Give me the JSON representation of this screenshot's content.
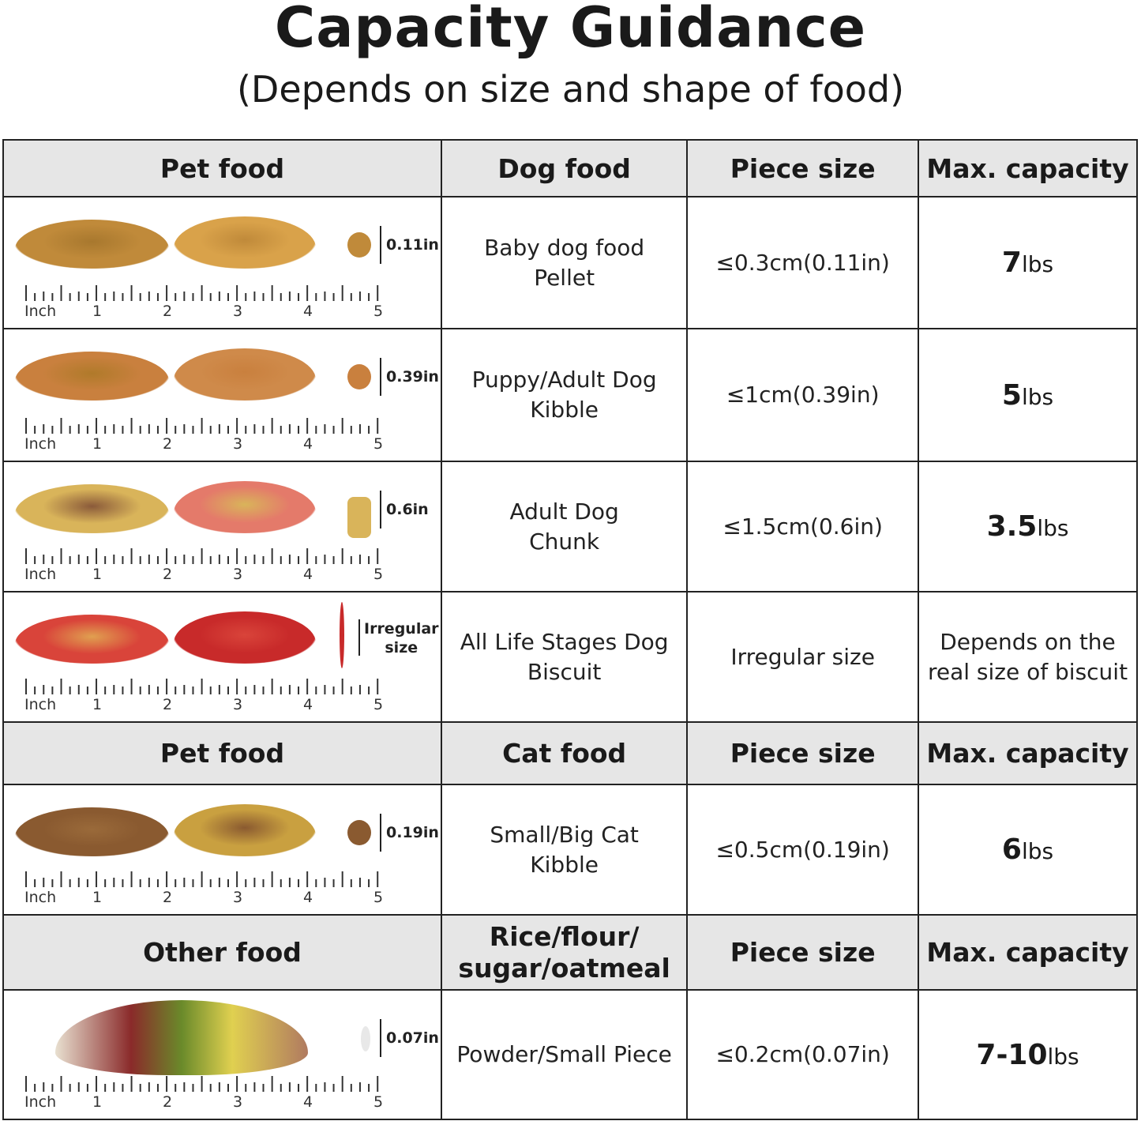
{
  "title": "Capacity Guidance",
  "subtitle": "(Depends on size and shape of food)",
  "ruler": {
    "unit": "Inch",
    "labels": [
      "1",
      "2",
      "3",
      "4",
      "5"
    ]
  },
  "sections": [
    {
      "headers": [
        "Pet food",
        "Dog food",
        "Piece size",
        "Max. capacity"
      ],
      "rows": [
        {
          "size_label": "0.11in",
          "food": "Baby dog food\nPellet",
          "piece": "≤0.3cm(0.11in)",
          "cap_num": "7",
          "cap_unit": "lbs",
          "colors": [
            "#a8782e",
            "#c08a3a",
            "#d9a24a"
          ],
          "height": "h0"
        },
        {
          "size_label": "0.39in",
          "food": "Puppy/Adult Dog\nKibble",
          "piece": "≤1cm(0.39in)",
          "cap_num": "5",
          "cap_unit": "lbs",
          "colors": [
            "#b07a2a",
            "#c9803e",
            "#cf8a4a"
          ]
        },
        {
          "size_label": "0.6in",
          "food": "Adult Dog\nChunk",
          "piece": "≤1.5cm(0.6in)",
          "cap_num": "3.5",
          "cap_unit": "lbs",
          "colors": [
            "#8a5a3a",
            "#d9b45a",
            "#e47a6a"
          ]
        },
        {
          "size_label": "Irregular\nsize",
          "food": "All Life Stages Dog\nBiscuit",
          "piece": "Irregular size",
          "cap_text": "Depends on the\nreal size of biscuit",
          "colors": [
            "#e0a050",
            "#d9443a",
            "#c82a2a"
          ]
        }
      ]
    },
    {
      "headers": [
        "Pet food",
        "Cat food",
        "Piece size",
        "Max. capacity"
      ],
      "rows": [
        {
          "size_label": "0.19in",
          "food": "Small/Big Cat\nKibble",
          "piece": "≤0.5cm(0.19in)",
          "cap_num": "6",
          "cap_unit": "lbs",
          "colors": [
            "#9a6a3a",
            "#8a5a30",
            "#c9a040"
          ]
        }
      ]
    },
    {
      "headers": [
        "Other food",
        "Rice/flour/\nsugar/oatmeal",
        "Piece size",
        "Max. capacity"
      ],
      "rows": [
        {
          "size_label": "0.07in",
          "food": "Powder/Small Piece",
          "piece": "≤0.2cm(0.07in)",
          "cap_num": "7-10",
          "cap_unit": "lbs",
          "colors": [
            "#6a8a2a",
            "#8a2a2a",
            "#e0d050"
          ]
        }
      ]
    }
  ]
}
